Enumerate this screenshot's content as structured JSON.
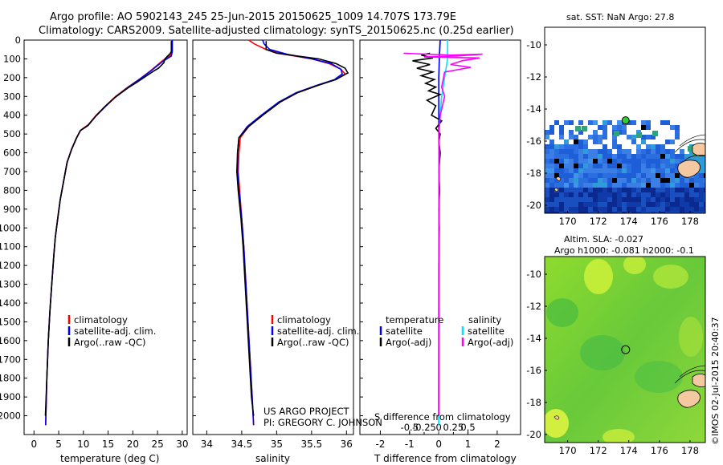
{
  "header": {
    "line1": "Argo profile: AO 5902143_245 25-Jun-2015 20150625_1009 14.707S 173.79E",
    "line2": "Climatology: CARS2009. Satellite-adjusted climatology: synTS_20150625.nc (0.25d earlier)"
  },
  "sst_title": "sat. SST: NaN Argo: 27.8",
  "altim": {
    "line1": "Altim. SLA: -0.027",
    "line2": "Argo h1000: -0.081 h2000: -0.1"
  },
  "project": {
    "line1": "US ARGO PROJECT",
    "line2": "PI: GREGORY C. JOHNSON"
  },
  "imos_stamp": "©IMOS 02-Jul-2015 20:40:37",
  "colors": {
    "climatology": "#ff0000",
    "satellite": "#0000ff",
    "argo": "#000000",
    "sal_satellite": "#00e5ff",
    "sal_argo": "#ff00ff",
    "argo_marker_fill": "#33cc33"
  },
  "legend_profile": {
    "items": [
      {
        "label": "climatology",
        "color": "#ff0000"
      },
      {
        "label": "satellite-adj. clim.",
        "color": "#0000ff"
      },
      {
        "label": "Argo(..raw -QC)",
        "color": "#000000"
      }
    ]
  },
  "legend_diff": {
    "temp_head": "temperature",
    "sal_head": "salinity",
    "temp_items": [
      {
        "label": "satellite",
        "color": "#0000ff"
      },
      {
        "label": "Argo(-adj)",
        "color": "#000000"
      }
    ],
    "sal_items": [
      {
        "label": "satellite",
        "color": "#00e5ff"
      },
      {
        "label": "Argo(-adj)",
        "color": "#ff00ff"
      }
    ]
  },
  "chart_data": [
    {
      "type": "line",
      "name": "temperature profile",
      "xlabel": "temperature (deg C)",
      "ylabel": "",
      "xlim": [
        -2,
        31
      ],
      "ylim": [
        2100,
        0
      ],
      "xticks": [
        0,
        5,
        10,
        15,
        20,
        25,
        30
      ],
      "yticks": [
        0,
        100,
        200,
        300,
        400,
        500,
        600,
        700,
        800,
        900,
        1000,
        1100,
        1200,
        1300,
        1400,
        1500,
        1600,
        1700,
        1800,
        1900,
        2000
      ],
      "series": [
        {
          "name": "climatology",
          "color": "#ff0000",
          "points": [
            [
              27.9,
              0
            ],
            [
              27.9,
              50
            ],
            [
              27.7,
              80
            ],
            [
              26,
              110
            ],
            [
              23.5,
              165
            ],
            [
              21.5,
              205
            ],
            [
              19,
              250
            ],
            [
              16.5,
              300
            ],
            [
              14.5,
              350
            ],
            [
              12.6,
              400
            ],
            [
              11,
              450
            ],
            [
              9.4,
              480
            ],
            [
              8.6,
              520
            ],
            [
              7.6,
              580
            ],
            [
              6.7,
              650
            ],
            [
              6,
              750
            ],
            [
              5.3,
              850
            ],
            [
              4.8,
              950
            ],
            [
              4.3,
              1050
            ],
            [
              4,
              1150
            ],
            [
              3.6,
              1300
            ],
            [
              3.2,
              1450
            ],
            [
              2.9,
              1600
            ],
            [
              2.6,
              1800
            ],
            [
              2.35,
              2050
            ]
          ]
        },
        {
          "name": "satellite-adj. clim.",
          "color": "#0000ff",
          "points": [
            [
              28,
              0
            ],
            [
              28,
              60
            ],
            [
              27.8,
              85
            ],
            [
              26,
              115
            ],
            [
              23.4,
              170
            ],
            [
              21.3,
              210
            ],
            [
              18.9,
              255
            ],
            [
              16.4,
              305
            ],
            [
              14.4,
              355
            ],
            [
              12.5,
              405
            ],
            [
              10.9,
              455
            ],
            [
              9.4,
              482
            ],
            [
              8.6,
              522
            ],
            [
              7.6,
              582
            ],
            [
              6.7,
              652
            ],
            [
              6,
              752
            ],
            [
              5.3,
              852
            ],
            [
              4.8,
              952
            ],
            [
              4.3,
              1052
            ],
            [
              4,
              1152
            ],
            [
              3.6,
              1302
            ],
            [
              3.2,
              1452
            ],
            [
              2.9,
              1602
            ],
            [
              2.6,
              1802
            ],
            [
              2.35,
              2050
            ]
          ]
        },
        {
          "name": "Argo(..raw -QC)",
          "color": "#000000",
          "points": [
            [
              27.8,
              5
            ],
            [
              27.8,
              60
            ],
            [
              27.6,
              70
            ],
            [
              26.5,
              100
            ],
            [
              26.3,
              120
            ],
            [
              25.2,
              150
            ],
            [
              24.2,
              165
            ],
            [
              22.5,
              195
            ],
            [
              20.8,
              225
            ],
            [
              19,
              255
            ],
            [
              16.4,
              305
            ],
            [
              14.3,
              355
            ],
            [
              12.5,
              405
            ],
            [
              10.9,
              455
            ],
            [
              9.4,
              482
            ],
            [
              8.6,
              522
            ],
            [
              7.6,
              582
            ],
            [
              6.7,
              652
            ],
            [
              6,
              752
            ],
            [
              5.3,
              852
            ],
            [
              4.8,
              952
            ],
            [
              4.3,
              1052
            ],
            [
              4,
              1152
            ],
            [
              3.6,
              1302
            ],
            [
              3.2,
              1452
            ],
            [
              2.9,
              1602
            ],
            [
              2.6,
              1802
            ],
            [
              2.3,
              2000
            ]
          ]
        }
      ]
    },
    {
      "type": "line",
      "name": "salinity profile",
      "xlabel": "salinity",
      "ylabel": "",
      "xlim": [
        33.8,
        36.1
      ],
      "ylim": [
        2100,
        0
      ],
      "xticks": [
        34,
        34.5,
        35,
        35.5,
        36
      ],
      "series": [
        {
          "name": "climatology",
          "color": "#ff0000",
          "points": [
            [
              34.6,
              0
            ],
            [
              34.68,
              20
            ],
            [
              34.85,
              50
            ],
            [
              35.1,
              75
            ],
            [
              35.5,
              100
            ],
            [
              35.75,
              125
            ],
            [
              35.92,
              155
            ],
            [
              35.98,
              180
            ],
            [
              35.85,
              210
            ],
            [
              35.6,
              240
            ],
            [
              35.3,
              280
            ],
            [
              35.05,
              330
            ],
            [
              34.8,
              400
            ],
            [
              34.6,
              460
            ],
            [
              34.48,
              520
            ],
            [
              34.46,
              600
            ],
            [
              34.45,
              700
            ],
            [
              34.47,
              800
            ],
            [
              34.5,
              950
            ],
            [
              34.53,
              1100
            ],
            [
              34.56,
              1300
            ],
            [
              34.59,
              1500
            ],
            [
              34.62,
              1700
            ],
            [
              34.65,
              1900
            ],
            [
              34.67,
              2050
            ]
          ]
        },
        {
          "name": "satellite-adj. clim.",
          "color": "#0000ff",
          "points": [
            [
              34.8,
              0
            ],
            [
              34.82,
              20
            ],
            [
              34.9,
              50
            ],
            [
              35.15,
              75
            ],
            [
              35.5,
              100
            ],
            [
              35.78,
              125
            ],
            [
              35.92,
              155
            ],
            [
              35.94,
              180
            ],
            [
              35.83,
              210
            ],
            [
              35.58,
              240
            ],
            [
              35.28,
              280
            ],
            [
              35.03,
              330
            ],
            [
              34.78,
              400
            ],
            [
              34.58,
              460
            ],
            [
              34.46,
              520
            ],
            [
              34.44,
              600
            ],
            [
              34.44,
              700
            ],
            [
              34.46,
              800
            ],
            [
              34.5,
              950
            ],
            [
              34.53,
              1100
            ],
            [
              34.56,
              1300
            ],
            [
              34.59,
              1500
            ],
            [
              34.62,
              1700
            ],
            [
              34.65,
              1900
            ],
            [
              34.67,
              2050
            ]
          ]
        },
        {
          "name": "Argo(..raw -QC)",
          "color": "#000000",
          "points": [
            [
              34.85,
              5
            ],
            [
              34.85,
              50
            ],
            [
              35,
              70
            ],
            [
              35.3,
              85
            ],
            [
              35.6,
              100
            ],
            [
              35.85,
              125
            ],
            [
              35.98,
              150
            ],
            [
              36.02,
              175
            ],
            [
              35.85,
              210
            ],
            [
              35.6,
              240
            ],
            [
              35.3,
              280
            ],
            [
              35.05,
              330
            ],
            [
              34.8,
              400
            ],
            [
              34.6,
              460
            ],
            [
              34.46,
              520
            ],
            [
              34.44,
              600
            ],
            [
              34.43,
              700
            ],
            [
              34.45,
              800
            ],
            [
              34.49,
              950
            ],
            [
              34.52,
              1100
            ],
            [
              34.55,
              1300
            ],
            [
              34.58,
              1500
            ],
            [
              34.61,
              1700
            ],
            [
              34.64,
              1900
            ],
            [
              34.67,
              2000
            ]
          ]
        }
      ]
    },
    {
      "type": "line",
      "name": "difference from climatology",
      "xlabel": "T difference from climatology",
      "xlabel2": "S difference from climatology",
      "xlim": [
        -2.7,
        2.8
      ],
      "ylim": [
        2100,
        0
      ],
      "xticks": [
        -2,
        -1,
        0,
        1,
        2
      ],
      "xticks_s": [
        "-0.5",
        "-0.25",
        "0",
        "0.25",
        "0.5"
      ],
      "series": [
        {
          "name": "temperature satellite",
          "color": "#0000ff",
          "points": [
            [
              0.05,
              0
            ],
            [
              0.02,
              100
            ],
            [
              0,
              200
            ],
            [
              0,
              2050
            ]
          ]
        },
        {
          "name": "temperature Argo(-adj)",
          "color": "#000000",
          "points": [
            [
              -0.3,
              70
            ],
            [
              -0.6,
              80
            ],
            [
              -0.2,
              95
            ],
            [
              -0.9,
              110
            ],
            [
              -0.3,
              130
            ],
            [
              -0.75,
              150
            ],
            [
              -0.2,
              170
            ],
            [
              -0.6,
              190
            ],
            [
              -0.15,
              210
            ],
            [
              -0.45,
              230
            ],
            [
              -0.1,
              250
            ],
            [
              -0.35,
              270
            ],
            [
              0.05,
              290
            ],
            [
              -0.4,
              320
            ],
            [
              -0.1,
              350
            ],
            [
              -0.25,
              400
            ],
            [
              0.1,
              430
            ],
            [
              -0.1,
              470
            ],
            [
              0.05,
              500
            ],
            [
              0,
              540
            ],
            [
              0.05,
              600
            ],
            [
              0,
              700
            ],
            [
              0.03,
              800
            ],
            [
              0,
              900
            ],
            [
              0.02,
              1000
            ],
            [
              0,
              1200
            ],
            [
              0,
              1400
            ],
            [
              0,
              1600
            ],
            [
              0,
              1800
            ],
            [
              0,
              2000
            ]
          ]
        },
        {
          "name": "salinity satellite",
          "color": "#00e5ff",
          "points": [
            [
              0.3,
              0
            ],
            [
              0.3,
              100
            ],
            [
              0.2,
              200
            ],
            [
              0.1,
              300
            ],
            [
              0.05,
              400
            ],
            [
              0,
              500
            ],
            [
              0,
              2050
            ]
          ]
        },
        {
          "name": "salinity Argo(-adj)",
          "color": "#ff00ff",
          "points": [
            [
              -1.2,
              70
            ],
            [
              0.4,
              80
            ],
            [
              1.5,
              75
            ],
            [
              0.6,
              85
            ],
            [
              -0.5,
              90
            ],
            [
              1.4,
              95
            ],
            [
              0.8,
              110
            ],
            [
              0.4,
              130
            ],
            [
              1.1,
              145
            ],
            [
              0.2,
              170
            ],
            [
              0.1,
              250
            ],
            [
              0.2,
              300
            ],
            [
              0.05,
              400
            ],
            [
              0,
              500
            ],
            [
              0.02,
              600
            ],
            [
              0,
              2000
            ]
          ]
        }
      ]
    }
  ],
  "sst_map": {
    "xlim": [
      168.5,
      179
    ],
    "ylim": [
      -20.5,
      -8.9
    ],
    "xticks": [
      "170",
      "172",
      "174",
      "176",
      "178"
    ],
    "yticks": [
      "-10",
      "-12",
      "-14",
      "-16",
      "-18",
      "-20"
    ],
    "argo_lon": 173.79,
    "argo_lat": -14.707
  },
  "sla_map": {
    "xlim": [
      168.5,
      179
    ],
    "ylim": [
      -20.5,
      -8.9
    ],
    "xticks": [
      "170",
      "172",
      "174",
      "176",
      "178"
    ],
    "yticks": [
      "-10",
      "-12",
      "-14",
      "-16",
      "-18",
      "-20"
    ],
    "argo_lon": 173.79,
    "argo_lat": -14.707
  }
}
